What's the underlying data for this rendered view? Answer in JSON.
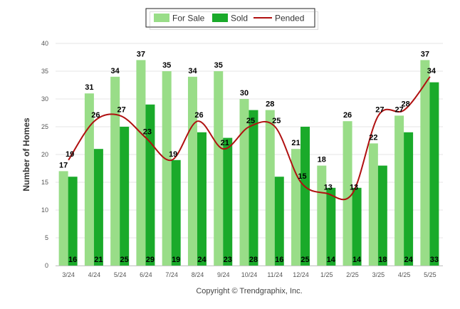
{
  "chart_data": {
    "type": "bar",
    "categories": [
      "3/24",
      "4/24",
      "5/24",
      "6/24",
      "7/24",
      "8/24",
      "9/24",
      "10/24",
      "11/24",
      "12/24",
      "1/25",
      "2/25",
      "3/25",
      "4/25",
      "5/25"
    ],
    "series": [
      {
        "name": "For Sale",
        "type": "bar",
        "color": "#99dd88",
        "values": [
          17,
          31,
          34,
          37,
          35,
          34,
          35,
          30,
          28,
          21,
          18,
          26,
          22,
          27,
          37
        ]
      },
      {
        "name": "Sold",
        "type": "bar",
        "color": "#1aaa2a",
        "values": [
          16,
          21,
          25,
          29,
          19,
          24,
          23,
          28,
          16,
          25,
          14,
          14,
          18,
          24,
          33
        ]
      },
      {
        "name": "Pended",
        "type": "line",
        "color": "#b01010",
        "values": [
          19,
          26,
          27,
          23,
          19,
          26,
          21,
          25,
          25,
          15,
          13,
          13,
          27,
          28,
          34
        ]
      }
    ],
    "ylabel": "Number of Homes",
    "xlabel": "",
    "ylim": [
      0,
      40
    ],
    "yticks": [
      0,
      5,
      10,
      15,
      20,
      25,
      30,
      35,
      40
    ],
    "grid": true,
    "legend_position": "top-center"
  },
  "footer": {
    "copyright": "Copyright © Trendgraphix, Inc."
  }
}
